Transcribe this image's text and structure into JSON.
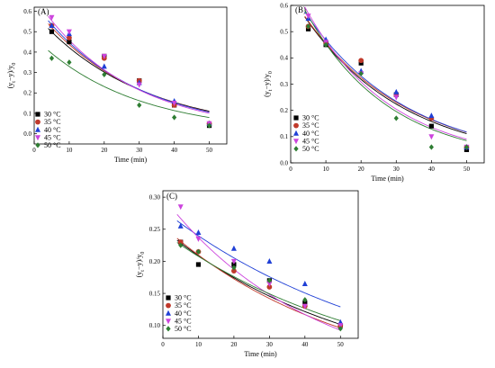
{
  "figure": {
    "background": "#ffffff"
  },
  "chart_data": [
    {
      "type": "scatter",
      "panel_label": "(A)",
      "xlabel": "Time (min)",
      "ylabel": "(yₜ−y)/y₀",
      "xlim": [
        0,
        55
      ],
      "ylim": [
        -0.05,
        0.62
      ],
      "x_ticks": [
        0,
        10,
        20,
        30,
        40,
        50
      ],
      "y_ticks": [
        0.0,
        0.1,
        0.2,
        0.3,
        0.4,
        0.5,
        0.6
      ],
      "y_tick_decimals": 1,
      "legend_position": "left",
      "series": [
        {
          "name": "30 °C",
          "marker": "square",
          "color": "#000000",
          "x": [
            5,
            10,
            20,
            30,
            40,
            50
          ],
          "y": [
            0.5,
            0.45,
            0.38,
            0.26,
            0.14,
            0.04
          ],
          "fit": {
            "a": 0.59,
            "k": 0.0335
          }
        },
        {
          "name": "35 °C",
          "marker": "circle",
          "color": "#c0392b",
          "x": [
            5,
            10,
            20,
            30,
            40,
            50
          ],
          "y": [
            0.53,
            0.47,
            0.37,
            0.26,
            0.14,
            0.05
          ],
          "fit": {
            "a": 0.62,
            "k": 0.035
          }
        },
        {
          "name": "40 °C",
          "marker": "triangle-up",
          "color": "#1f3fd6",
          "x": [
            5,
            10,
            20,
            30,
            40,
            50
          ],
          "y": [
            0.53,
            0.49,
            0.33,
            0.25,
            0.16,
            0.05
          ],
          "fit": {
            "a": 0.64,
            "k": 0.036
          }
        },
        {
          "name": "45 °C",
          "marker": "triangle-down",
          "color": "#cc44dd",
          "x": [
            5,
            10,
            20,
            30,
            40,
            50
          ],
          "y": [
            0.57,
            0.5,
            0.38,
            0.24,
            0.15,
            0.05
          ],
          "fit": {
            "a": 0.67,
            "k": 0.038
          }
        },
        {
          "name": "50 °C",
          "marker": "diamond",
          "color": "#2e7d32",
          "x": [
            5,
            10,
            20,
            30,
            40,
            50
          ],
          "y": [
            0.37,
            0.35,
            0.29,
            0.14,
            0.08,
            0.04
          ],
          "fit": {
            "a": 0.47,
            "k": 0.0355
          }
        }
      ]
    },
    {
      "type": "scatter",
      "panel_label": "(B)",
      "xlabel": "Time (min)",
      "ylabel": "(yₜ−y)/y₀",
      "xlim": [
        0,
        55
      ],
      "ylim": [
        0.0,
        0.6
      ],
      "x_ticks": [
        0,
        10,
        20,
        30,
        40,
        50
      ],
      "y_ticks": [
        0.0,
        0.1,
        0.2,
        0.3,
        0.4,
        0.5,
        0.6
      ],
      "y_tick_decimals": 1,
      "legend_position": "left",
      "series": [
        {
          "name": "30 °C",
          "marker": "square",
          "color": "#000000",
          "x": [
            5,
            10,
            20,
            30,
            40,
            50
          ],
          "y": [
            0.51,
            0.45,
            0.38,
            0.26,
            0.14,
            0.05
          ],
          "fit": {
            "a": 0.64,
            "k": 0.035
          }
        },
        {
          "name": "35 °C",
          "marker": "circle",
          "color": "#c0392b",
          "x": [
            5,
            10,
            20,
            30,
            40,
            50
          ],
          "y": [
            0.52,
            0.46,
            0.39,
            0.26,
            0.17,
            0.06
          ],
          "fit": {
            "a": 0.64,
            "k": 0.034
          }
        },
        {
          "name": "40 °C",
          "marker": "triangle-up",
          "color": "#1f3fd6",
          "x": [
            5,
            10,
            20,
            30,
            40,
            50
          ],
          "y": [
            0.55,
            0.47,
            0.35,
            0.27,
            0.18,
            0.06
          ],
          "fit": {
            "a": 0.66,
            "k": 0.0345
          }
        },
        {
          "name": "45 °C",
          "marker": "triangle-down",
          "color": "#cc44dd",
          "x": [
            5,
            10,
            20,
            30,
            40,
            50
          ],
          "y": [
            0.56,
            0.46,
            0.34,
            0.25,
            0.1,
            0.06
          ],
          "fit": {
            "a": 0.7,
            "k": 0.041
          }
        },
        {
          "name": "50 °C",
          "marker": "diamond",
          "color": "#2e7d32",
          "x": [
            5,
            10,
            20,
            30,
            40,
            50
          ],
          "y": [
            0.52,
            0.45,
            0.34,
            0.17,
            0.06,
            0.06
          ],
          "fit": {
            "a": 0.69,
            "k": 0.042
          }
        }
      ]
    },
    {
      "type": "scatter",
      "panel_label": "(C)",
      "xlabel": "Time (min)",
      "ylabel": "(yₜ−y)/y₀",
      "xlim": [
        0,
        55
      ],
      "ylim": [
        0.08,
        0.31
      ],
      "x_ticks": [
        0,
        10,
        20,
        30,
        40,
        50
      ],
      "y_ticks": [
        0.1,
        0.15,
        0.2,
        0.25,
        0.3
      ],
      "y_tick_decimals": 2,
      "legend_position": "bottom-left",
      "series": [
        {
          "name": "30 °C",
          "marker": "square",
          "color": "#000000",
          "x": [
            5,
            10,
            20,
            30,
            40,
            50
          ],
          "y": [
            0.23,
            0.195,
            0.195,
            0.17,
            0.135,
            0.1
          ],
          "fit": {
            "a": 0.25,
            "k": 0.018
          }
        },
        {
          "name": "35 °C",
          "marker": "circle",
          "color": "#c0392b",
          "x": [
            5,
            10,
            20,
            30,
            40,
            50
          ],
          "y": [
            0.23,
            0.215,
            0.185,
            0.16,
            0.13,
            0.1
          ],
          "fit": {
            "a": 0.255,
            "k": 0.0195
          }
        },
        {
          "name": "40 °C",
          "marker": "triangle-up",
          "color": "#1f3fd6",
          "x": [
            5,
            10,
            20,
            30,
            40,
            50
          ],
          "y": [
            0.255,
            0.245,
            0.22,
            0.2,
            0.165,
            0.105
          ],
          "fit": {
            "a": 0.28,
            "k": 0.0155
          }
        },
        {
          "name": "45 °C",
          "marker": "triangle-down",
          "color": "#cc44dd",
          "x": [
            5,
            10,
            20,
            30,
            40,
            50
          ],
          "y": [
            0.285,
            0.235,
            0.2,
            0.165,
            0.13,
            0.1
          ],
          "fit": {
            "a": 0.3,
            "k": 0.0235
          }
        },
        {
          "name": "50 °C",
          "marker": "diamond",
          "color": "#2e7d32",
          "x": [
            5,
            10,
            20,
            30,
            40,
            50
          ],
          "y": [
            0.225,
            0.215,
            0.19,
            0.17,
            0.14,
            0.095
          ],
          "fit": {
            "a": 0.245,
            "k": 0.0165
          }
        }
      ]
    }
  ]
}
